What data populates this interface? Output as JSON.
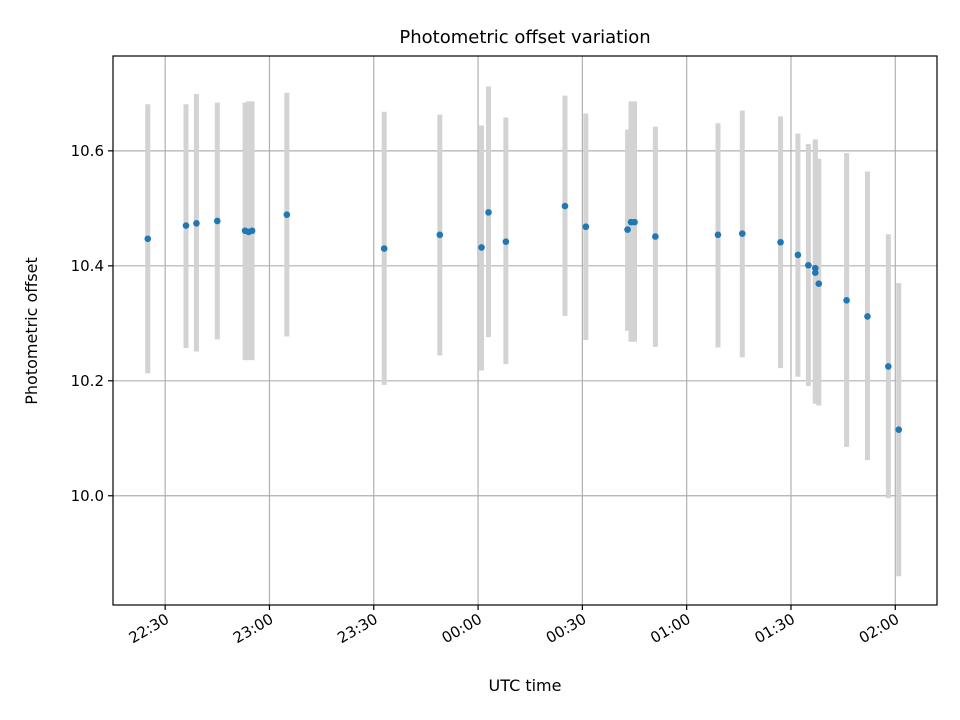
{
  "chart_data": {
    "type": "scatter",
    "title": "Photometric offset variation",
    "xlabel": "UTC time",
    "ylabel": "Photometric offset",
    "grid": true,
    "x_ticks": [
      "22:30",
      "23:00",
      "23:30",
      "00:00",
      "00:30",
      "01:00",
      "01:30",
      "02:00"
    ],
    "y_ticks": [
      "10.0",
      "10.2",
      "10.4",
      "10.6"
    ],
    "xlim": [
      "22:15",
      "02:12"
    ],
    "ylim": [
      9.81,
      10.765
    ],
    "colors": {
      "point": "#1f77b4",
      "errorbar": "#d3d3d3",
      "grid": "#b0b0b0"
    },
    "points": [
      {
        "x": "22:25",
        "y": 10.447,
        "lo": 10.213,
        "hi": 10.681
      },
      {
        "x": "22:36",
        "y": 10.47,
        "lo": 10.257,
        "hi": 10.681
      },
      {
        "x": "22:39",
        "y": 10.474,
        "lo": 10.251,
        "hi": 10.699
      },
      {
        "x": "22:45",
        "y": 10.478,
        "lo": 10.272,
        "hi": 10.684
      },
      {
        "x": "22:53",
        "y": 10.461,
        "lo": 10.236,
        "hi": 10.684
      },
      {
        "x": "22:54",
        "y": 10.459,
        "lo": 10.236,
        "hi": 10.686
      },
      {
        "x": "22:55",
        "y": 10.461,
        "lo": 10.236,
        "hi": 10.686
      },
      {
        "x": "23:05",
        "y": 10.489,
        "lo": 10.277,
        "hi": 10.701
      },
      {
        "x": "23:33",
        "y": 10.43,
        "lo": 10.193,
        "hi": 10.668
      },
      {
        "x": "23:49",
        "y": 10.454,
        "lo": 10.244,
        "hi": 10.663
      },
      {
        "x": "00:01",
        "y": 10.432,
        "lo": 10.218,
        "hi": 10.644
      },
      {
        "x": "00:03",
        "y": 10.493,
        "lo": 10.276,
        "hi": 10.712
      },
      {
        "x": "00:08",
        "y": 10.442,
        "lo": 10.229,
        "hi": 10.658
      },
      {
        "x": "00:25",
        "y": 10.504,
        "lo": 10.313,
        "hi": 10.696
      },
      {
        "x": "00:31",
        "y": 10.468,
        "lo": 10.271,
        "hi": 10.665
      },
      {
        "x": "00:43",
        "y": 10.463,
        "lo": 10.287,
        "hi": 10.637
      },
      {
        "x": "00:44",
        "y": 10.476,
        "lo": 10.268,
        "hi": 10.686
      },
      {
        "x": "00:45",
        "y": 10.476,
        "lo": 10.268,
        "hi": 10.686
      },
      {
        "x": "00:51",
        "y": 10.451,
        "lo": 10.259,
        "hi": 10.642
      },
      {
        "x": "01:09",
        "y": 10.454,
        "lo": 10.258,
        "hi": 10.648
      },
      {
        "x": "01:16",
        "y": 10.456,
        "lo": 10.241,
        "hi": 10.67
      },
      {
        "x": "01:27",
        "y": 10.441,
        "lo": 10.222,
        "hi": 10.66
      },
      {
        "x": "01:32",
        "y": 10.419,
        "lo": 10.207,
        "hi": 10.63
      },
      {
        "x": "01:35",
        "y": 10.401,
        "lo": 10.191,
        "hi": 10.612
      },
      {
        "x": "01:37",
        "y": 10.396,
        "lo": 10.173,
        "hi": 10.62
      },
      {
        "x": "01:37",
        "y": 10.388,
        "lo": 10.16,
        "hi": 10.618
      },
      {
        "x": "01:38",
        "y": 10.369,
        "lo": 10.157,
        "hi": 10.586
      },
      {
        "x": "01:46",
        "y": 10.34,
        "lo": 10.085,
        "hi": 10.596
      },
      {
        "x": "01:52",
        "y": 10.312,
        "lo": 10.062,
        "hi": 10.564
      },
      {
        "x": "01:58",
        "y": 10.225,
        "lo": 9.996,
        "hi": 10.455
      },
      {
        "x": "02:01",
        "y": 10.115,
        "lo": 9.86,
        "hi": 10.37
      }
    ]
  }
}
